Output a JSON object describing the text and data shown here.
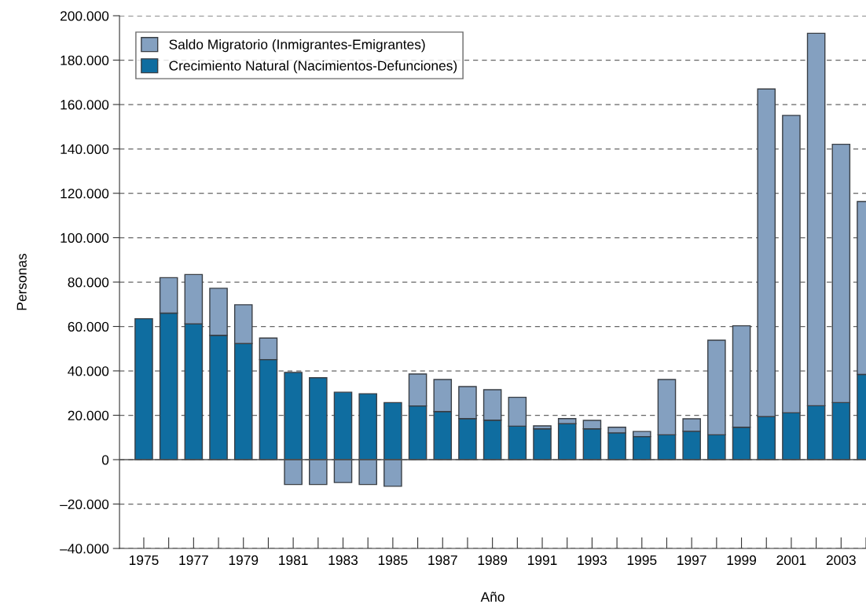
{
  "chart_data": {
    "type": "bar",
    "stacked": true,
    "xlabel": "Año",
    "ylabel": "Personas",
    "categories": [
      "1975",
      null,
      "1977",
      null,
      "1979",
      null,
      "1981",
      null,
      "1983",
      null,
      "1985",
      null,
      "1987",
      null,
      "1989",
      null,
      "1991",
      null,
      "1993",
      null,
      "1995",
      null,
      "1997",
      null,
      "1999",
      null,
      "2001",
      null,
      "2003",
      null
    ],
    "series": [
      {
        "name": "Crecimiento Natural (Nacimientos-Defunciones)",
        "color": "#0f6da0",
        "values": [
          63500,
          66000,
          61200,
          56000,
          52300,
          45100,
          39300,
          36900,
          30400,
          29700,
          25700,
          24200,
          21700,
          18500,
          17800,
          15100,
          13900,
          16200,
          13900,
          12100,
          10400,
          11200,
          12800,
          11200,
          14600,
          19400,
          21100,
          24300,
          25700,
          38400
        ]
      },
      {
        "name": "Saldo Migratorio (Inmigrantes-Emigrantes)",
        "color": "#84a0c0",
        "values": [
          null,
          16000,
          22200,
          21200,
          17500,
          9700,
          -11200,
          -11200,
          -10300,
          -11200,
          -12000,
          14400,
          14400,
          14400,
          13700,
          13000,
          1300,
          2300,
          3800,
          2500,
          2300,
          24900,
          5600,
          42600,
          45700,
          147600,
          134000,
          167800,
          116400,
          77900
        ]
      }
    ],
    "ylim": [
      -40000,
      200000
    ],
    "yticks": [
      {
        "value": -40000,
        "label": "–40.000"
      },
      {
        "value": -20000,
        "label": "–20.000"
      },
      0,
      {
        "value": 20000,
        "label": "20.000"
      },
      {
        "value": 40000,
        "label": "40.000"
      },
      {
        "value": 60000,
        "label": "60.000"
      },
      {
        "value": 80000,
        "label": "80.000"
      },
      {
        "value": 100000,
        "label": "100.000"
      },
      {
        "value": 120000,
        "label": "120.000"
      },
      {
        "value": 140000,
        "label": "140.000"
      },
      {
        "value": 160000,
        "label": "160.000"
      },
      {
        "value": 180000,
        "label": "180.000"
      },
      {
        "value": 200000,
        "label": "200.000"
      }
    ],
    "grid": "y",
    "legend": "top left"
  }
}
